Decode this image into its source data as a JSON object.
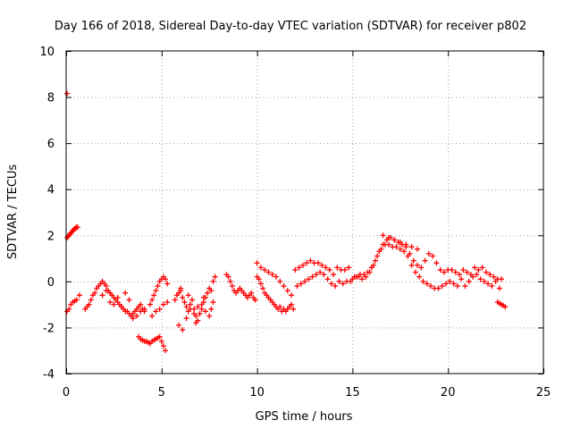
{
  "chart_data": {
    "type": "scatter",
    "title": "Day 166 of 2018, Sidereal Day-to-day VTEC variation (SDTVAR) for receiver p802",
    "xlabel": "GPS time / hours",
    "ylabel": "SDTVAR / TECUs",
    "xlim": [
      0,
      25
    ],
    "ylim": [
      -4,
      10
    ],
    "xticks": [
      0,
      5,
      10,
      15,
      20,
      25
    ],
    "yticks": [
      -4,
      -2,
      0,
      2,
      4,
      6,
      8,
      10
    ],
    "grid": true,
    "marker": "plus",
    "color": "#ff0000",
    "series": [
      {
        "name": "p802",
        "x": [
          0.05,
          0.1,
          0.15,
          0.2,
          0.25,
          0.3,
          0.35,
          0.4,
          0.45,
          0.5,
          0.55,
          0.6,
          0.05,
          0.15,
          0.25,
          0.35,
          0.45,
          0.55,
          0.7,
          0.05,
          1.0,
          1.1,
          1.2,
          1.3,
          1.4,
          1.5,
          1.6,
          1.7,
          1.8,
          1.9,
          2.0,
          2.1,
          2.2,
          2.3,
          2.4,
          2.5,
          2.6,
          2.7,
          2.8,
          2.9,
          3.0,
          3.1,
          3.2,
          3.3,
          3.4,
          3.5,
          3.6,
          3.7,
          3.8,
          3.9,
          4.0,
          4.1,
          1.9,
          2.1,
          2.3,
          2.5,
          2.7,
          2.9,
          3.1,
          3.3,
          3.5,
          3.7,
          3.9,
          4.1,
          3.8,
          3.9,
          4.0,
          4.1,
          4.2,
          4.3,
          4.4,
          4.5,
          4.6,
          4.7,
          4.8,
          4.9,
          5.0,
          5.1,
          5.2,
          4.4,
          4.5,
          4.6,
          4.7,
          4.8,
          4.9,
          5.0,
          5.1,
          5.2,
          5.3,
          4.5,
          4.7,
          4.9,
          5.1,
          5.3,
          5.7,
          5.8,
          5.9,
          6.0,
          6.1,
          6.2,
          6.3,
          6.4,
          6.5,
          6.6,
          6.7,
          6.8,
          6.9,
          7.0,
          7.1,
          7.2,
          7.3,
          7.4,
          7.5,
          7.6,
          7.7,
          7.8,
          5.9,
          6.1,
          6.3,
          6.5,
          6.7,
          6.9,
          7.1,
          7.3,
          7.5,
          7.7,
          6.0,
          6.4,
          6.8,
          7.2,
          7.6,
          8.4,
          8.5,
          8.6,
          8.7,
          8.8,
          8.9,
          9.0,
          9.1,
          9.2,
          9.3,
          9.4,
          9.5,
          9.6,
          9.7,
          9.8,
          9.9,
          9.9,
          10.0,
          10.1,
          10.2,
          10.3,
          10.4,
          10.5,
          10.6,
          10.7,
          10.8,
          10.9,
          11.0,
          11.1,
          11.2,
          11.3,
          11.4,
          11.5,
          11.6,
          11.7,
          11.8,
          11.9,
          10.0,
          10.2,
          10.4,
          10.6,
          10.8,
          11.0,
          11.2,
          11.4,
          11.6,
          11.8,
          12.0,
          12.2,
          12.4,
          12.6,
          12.8,
          13.0,
          13.2,
          13.4,
          13.6,
          13.8,
          14.0,
          14.2,
          14.4,
          14.6,
          14.8,
          12.1,
          12.3,
          12.5,
          12.7,
          12.9,
          13.1,
          13.3,
          13.5,
          13.7,
          13.9,
          14.1,
          14.3,
          14.5,
          14.7,
          14.9,
          15.0,
          15.2,
          15.4,
          15.6,
          15.8,
          16.0,
          16.2,
          16.4,
          16.6,
          16.8,
          17.0,
          17.2,
          17.4,
          17.6,
          17.8,
          18.0,
          18.2,
          18.4,
          18.6,
          18.8,
          19.0,
          19.2,
          19.4,
          19.6,
          15.1,
          15.3,
          15.5,
          15.7,
          15.9,
          16.1,
          16.3,
          16.5,
          16.7,
          16.9,
          17.1,
          17.3,
          17.5,
          17.7,
          17.9,
          18.1,
          18.3,
          18.5,
          18.7,
          18.9,
          19.1,
          19.3,
          19.5,
          19.7,
          16.6,
          16.9,
          17.2,
          17.5,
          17.8,
          18.1,
          18.4,
          19.8,
          20.0,
          20.2,
          20.4,
          20.6,
          20.8,
          21.0,
          21.2,
          21.4,
          21.6,
          21.8,
          22.0,
          22.2,
          22.4,
          22.6,
          22.8,
          19.9,
          20.1,
          20.3,
          20.5,
          20.7,
          20.9,
          21.1,
          21.3,
          21.5,
          21.7,
          21.9,
          22.1,
          22.3,
          22.5,
          22.7,
          22.6,
          22.7,
          22.8,
          22.9,
          23.0
        ],
        "y": [
          1.9,
          1.95,
          2.0,
          2.05,
          2.1,
          2.15,
          2.2,
          2.25,
          2.3,
          2.3,
          2.35,
          2.35,
          -1.3,
          -1.2,
          -1.0,
          -0.9,
          -0.85,
          -0.8,
          -0.6,
          8.15,
          -1.2,
          -1.1,
          -1.0,
          -0.8,
          -0.6,
          -0.5,
          -0.3,
          -0.2,
          -0.1,
          0.0,
          -0.1,
          -0.2,
          -0.4,
          -0.5,
          -0.6,
          -0.7,
          -0.8,
          -0.9,
          -1.0,
          -1.1,
          -1.2,
          -1.3,
          -1.3,
          -1.4,
          -1.5,
          -1.4,
          -1.3,
          -1.2,
          -1.1,
          -1.3,
          -1.2,
          -1.3,
          -0.6,
          -0.4,
          -0.9,
          -1.0,
          -0.7,
          -1.1,
          -0.5,
          -0.8,
          -1.6,
          -1.5,
          -1.0,
          -1.2,
          -2.4,
          -2.5,
          -2.55,
          -2.6,
          -2.6,
          -2.65,
          -2.7,
          -2.6,
          -2.55,
          -2.5,
          -2.45,
          -2.4,
          -2.6,
          -2.8,
          -3.0,
          -1.0,
          -0.8,
          -0.6,
          -0.4,
          -0.2,
          0.0,
          0.1,
          0.2,
          0.1,
          -0.1,
          -1.5,
          -1.3,
          -1.2,
          -1.0,
          -0.9,
          -0.8,
          -0.6,
          -0.5,
          -0.4,
          -0.7,
          -0.9,
          -1.1,
          -1.3,
          -1.0,
          -0.8,
          -1.2,
          -1.5,
          -1.7,
          -1.4,
          -1.2,
          -0.9,
          -0.7,
          -0.5,
          -0.3,
          -0.4,
          0.0,
          0.2,
          -1.9,
          -2.1,
          -1.6,
          -1.2,
          -1.4,
          -1.1,
          -1.0,
          -1.3,
          -1.5,
          -0.9,
          -0.3,
          -0.6,
          -1.8,
          -0.7,
          -1.2,
          0.3,
          0.2,
          0.0,
          -0.2,
          -0.4,
          -0.5,
          -0.4,
          -0.3,
          -0.4,
          -0.5,
          -0.6,
          -0.7,
          -0.6,
          -0.5,
          -0.7,
          -0.8,
          -0.8,
          0.2,
          0.1,
          -0.1,
          -0.3,
          -0.5,
          -0.6,
          -0.7,
          -0.8,
          -0.9,
          -1.0,
          -1.1,
          -1.2,
          -1.1,
          -1.3,
          -1.2,
          -1.3,
          -1.2,
          -1.1,
          -1.0,
          -1.2,
          0.8,
          0.6,
          0.5,
          0.4,
          0.3,
          0.2,
          0.0,
          -0.2,
          -0.4,
          -0.6,
          0.5,
          0.6,
          0.7,
          0.8,
          0.9,
          0.8,
          0.8,
          0.7,
          0.6,
          0.5,
          0.3,
          0.6,
          0.5,
          0.5,
          0.6,
          -0.2,
          -0.1,
          0.0,
          0.1,
          0.2,
          0.3,
          0.4,
          0.3,
          0.1,
          -0.1,
          -0.2,
          0.0,
          -0.1,
          0.0,
          0.0,
          0.1,
          0.2,
          0.3,
          0.3,
          0.4,
          0.6,
          0.9,
          1.3,
          1.6,
          1.8,
          1.9,
          1.8,
          1.7,
          1.6,
          1.5,
          1.2,
          0.9,
          0.7,
          0.6,
          0.9,
          1.2,
          1.1,
          0.8,
          0.5,
          0.2,
          0.2,
          0.1,
          0.2,
          0.4,
          0.7,
          1.1,
          1.4,
          1.6,
          1.6,
          1.5,
          1.5,
          1.4,
          1.3,
          1.1,
          0.7,
          0.4,
          0.2,
          0.0,
          -0.1,
          -0.2,
          -0.3,
          -0.3,
          -0.2,
          2.0,
          1.9,
          1.8,
          1.7,
          1.6,
          1.5,
          1.4,
          0.4,
          0.5,
          0.5,
          0.4,
          0.3,
          0.5,
          0.4,
          0.3,
          0.6,
          0.5,
          0.6,
          0.4,
          0.3,
          0.2,
          0.1,
          0.1,
          -0.1,
          0.0,
          -0.1,
          -0.2,
          0.1,
          -0.2,
          0.0,
          0.2,
          0.3,
          0.1,
          0.0,
          -0.1,
          -0.2,
          0.0,
          -0.3,
          -0.9,
          -0.95,
          -1.0,
          -1.05,
          -1.1
        ]
      }
    ]
  }
}
